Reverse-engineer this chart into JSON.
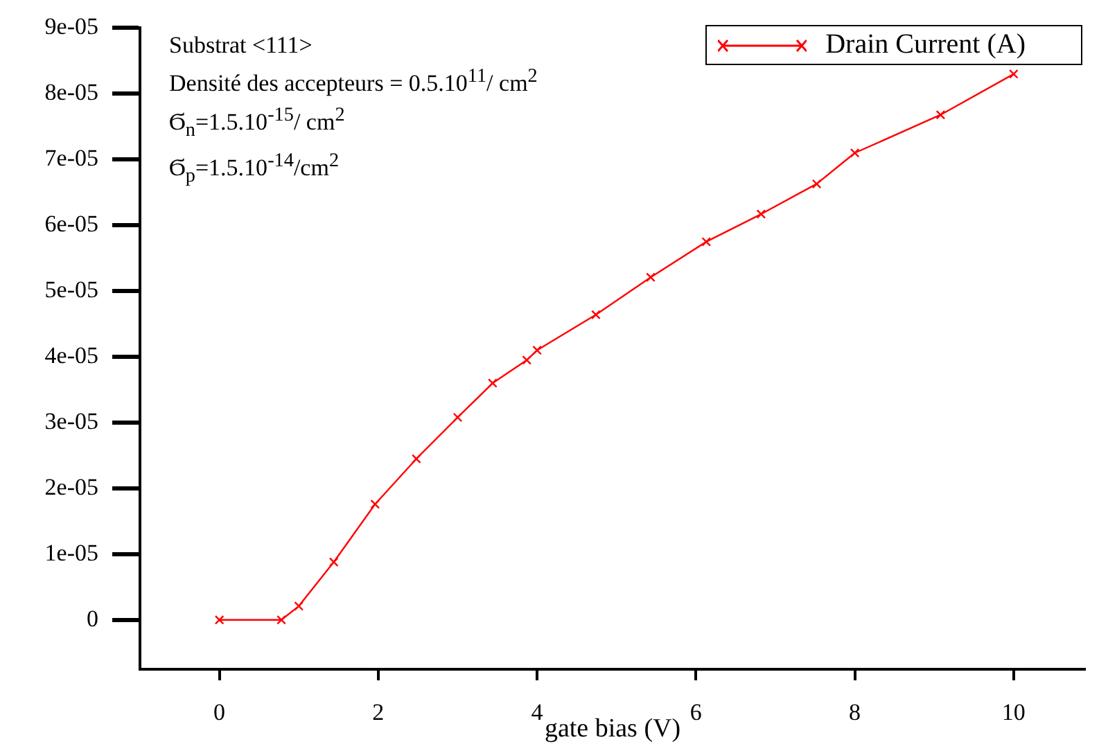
{
  "chart_data": {
    "type": "line",
    "xlabel": "gate bias (V)",
    "xlim": [
      -1,
      10.9
    ],
    "xticks": [
      0,
      2,
      4,
      6,
      8,
      10
    ],
    "ylim": [
      -7.5e-06,
      9e-05
    ],
    "yticks": [
      {
        "value": 0,
        "label": "0"
      },
      {
        "value": 1e-05,
        "label": "1e-05"
      },
      {
        "value": 2e-05,
        "label": "2e-05"
      },
      {
        "value": 3e-05,
        "label": "3e-05"
      },
      {
        "value": 4e-05,
        "label": "4e-05"
      },
      {
        "value": 5e-05,
        "label": "5e-05"
      },
      {
        "value": 6e-05,
        "label": "6e-05"
      },
      {
        "value": 7e-05,
        "label": "7e-05"
      },
      {
        "value": 8e-05,
        "label": "8e-05"
      },
      {
        "value": 9e-05,
        "label": "9e-05"
      }
    ],
    "x": [
      0,
      0.78,
      1.0,
      1.44,
      1.96,
      2.48,
      3.0,
      3.44,
      3.87,
      4.0,
      4.74,
      5.43,
      6.13,
      6.82,
      7.52,
      8.0,
      9.08,
      10.0
    ],
    "series": [
      {
        "name": "Drain Current (A)",
        "color": "#ff0000",
        "values": [
          0,
          0,
          2.1e-06,
          8.8e-06,
          1.76e-05,
          2.45e-05,
          3.08e-05,
          3.6e-05,
          3.95e-05,
          4.1e-05,
          4.64e-05,
          5.21e-05,
          5.75e-05,
          6.17e-05,
          6.63e-05,
          7.1e-05,
          7.68e-05,
          8.3e-05
        ]
      }
    ],
    "marker": "cross",
    "line_style": "solid",
    "grid": false,
    "legend": "top right",
    "annotations": [
      "Substrat <111>",
      "Densité des accepteurs = 0.5.10$^{11}$/ cm$^{2}$",
      "Ϭ$_{n}$=1.5.10$^{-15}$/ cm$^{2}$",
      "Ϭ$_{p}$=1.5.10$^{-14}$/cm$^{2}$"
    ]
  }
}
